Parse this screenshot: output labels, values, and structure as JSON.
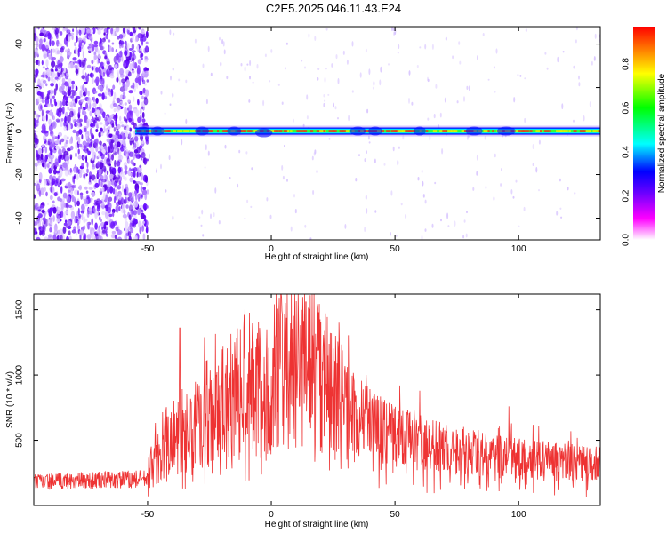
{
  "title": "C2E5.2025.046.11.43.E24",
  "chart_data": [
    {
      "type": "heatmap",
      "xlabel": "Height of straight line (km)",
      "ylabel": "Frequency (Hz)",
      "xlim": [
        -96,
        133
      ],
      "ylim": [
        -50,
        48
      ],
      "xticks": [
        -50,
        0,
        50,
        100
      ],
      "yticks": [
        -40,
        -20,
        0,
        20,
        40
      ],
      "xtick_labels": [
        "-50",
        "0",
        "50",
        "100"
      ],
      "ytick_labels": [
        "-40",
        "-20",
        "0",
        "20",
        "40"
      ],
      "colorbar": {
        "label": "Normalized spectral amplitude",
        "range": [
          0,
          0.97
        ],
        "ticks": [
          0.0,
          0.2,
          0.4,
          0.6,
          0.8
        ],
        "tick_labels": [
          "0.0",
          "0.2",
          "0.4",
          "0.6",
          "0.8"
        ],
        "colormap": [
          "#ffffff",
          "#ff00ff",
          "#6a00ff",
          "#0000ff",
          "#00ffff",
          "#00ff00",
          "#ffff00",
          "#ff0000"
        ]
      },
      "signal_band": {
        "frequency_hz": 0,
        "start_km": -55,
        "end_km": 133
      },
      "noise_region_km": [
        -96,
        -50
      ]
    },
    {
      "type": "line",
      "xlabel": "Height of straight line (km)",
      "ylabel": "SNR (10 * v/v)",
      "xlim": [
        -96,
        133
      ],
      "ylim": [
        0,
        1620
      ],
      "xticks": [
        -50,
        0,
        50,
        100
      ],
      "yticks": [
        500,
        1000,
        1500
      ],
      "xtick_labels": [
        "-50",
        "0",
        "50",
        "100"
      ],
      "ytick_labels": [
        "500",
        "1000",
        "1500"
      ],
      "grid": false,
      "series": [
        {
          "color": "#ee3333",
          "x": [
            -96,
            -85,
            -75,
            -65,
            -55,
            -50,
            -47,
            -42,
            -37,
            -32,
            -28,
            -24,
            -20,
            -16,
            -12,
            -8,
            -4,
            0,
            4,
            8,
            12,
            16,
            20,
            25,
            30,
            35,
            40,
            45,
            50,
            55,
            60,
            70,
            80,
            90,
            100,
            110,
            120,
            133
          ],
          "values": [
            180,
            185,
            190,
            195,
            200,
            205,
            400,
            480,
            560,
            620,
            680,
            720,
            780,
            830,
            870,
            880,
            900,
            950,
            1050,
            1080,
            1080,
            1050,
            980,
            860,
            760,
            680,
            620,
            580,
            540,
            510,
            480,
            440,
            410,
            380,
            360,
            340,
            330,
            320
          ],
          "peaks": [
            [
              -37,
              1360
            ],
            [
              -27,
              1290
            ],
            [
              -11,
              1460
            ],
            [
              4,
              1620
            ],
            [
              14,
              1560
            ],
            [
              60,
              880
            ],
            [
              96,
              760
            ]
          ]
        }
      ]
    }
  ]
}
